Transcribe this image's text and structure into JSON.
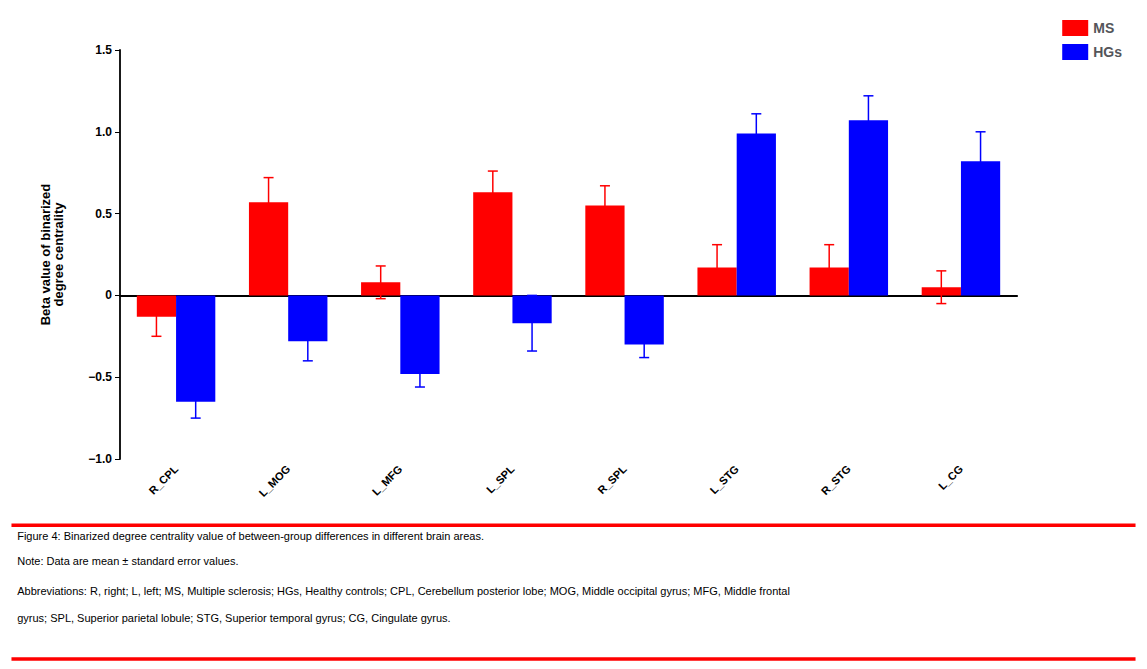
{
  "chart_data": {
    "type": "bar",
    "categories": [
      "R_CPL",
      "L_MOG",
      "L_MFG",
      "L_SPL",
      "R_SPL",
      "L_STG",
      "R_STG",
      "L_CG"
    ],
    "series": [
      {
        "name": "MS",
        "color": "#FF0000",
        "values": [
          -0.13,
          0.57,
          0.08,
          0.63,
          0.55,
          0.17,
          0.17,
          0.05
        ],
        "errors": [
          0.12,
          0.15,
          0.1,
          0.13,
          0.12,
          0.14,
          0.14,
          0.1
        ]
      },
      {
        "name": "HGs",
        "color": "#0000FF",
        "values": [
          -0.65,
          -0.28,
          -0.48,
          -0.17,
          -0.3,
          0.99,
          1.07,
          0.82
        ],
        "errors": [
          0.1,
          0.12,
          0.08,
          0.17,
          0.08,
          0.12,
          0.15,
          0.18
        ]
      }
    ],
    "ylabel": "Beta value of binarized\ndegree centrality",
    "ylim": [
      -1.0,
      1.5
    ],
    "yticks": [
      {
        "value": -1.0,
        "label": "−1.0"
      },
      {
        "value": -0.5,
        "label": "−0.5"
      },
      0,
      0.5,
      {
        "value": 1.0,
        "label": "1.0"
      },
      1.5
    ],
    "grid": false,
    "legend": "upper right",
    "annotations": [
      "Figure 4: Binarized degree centrality value of between-group differences in different brain areas.",
      "Note: Data are mean ± standard error values.",
      "Abbreviations: R, right; L, left; MS, Multiple sclerosis; HGs, Healthy controls; CPL, Cerebellum posterior lobe; MOG, Middle occipital gyrus; MFG, Middle frontal",
      "gyrus; SPL, Superior parietal lobule; STG, Superior temporal gyrus; CG, Cingulate gyrus."
    ]
  }
}
